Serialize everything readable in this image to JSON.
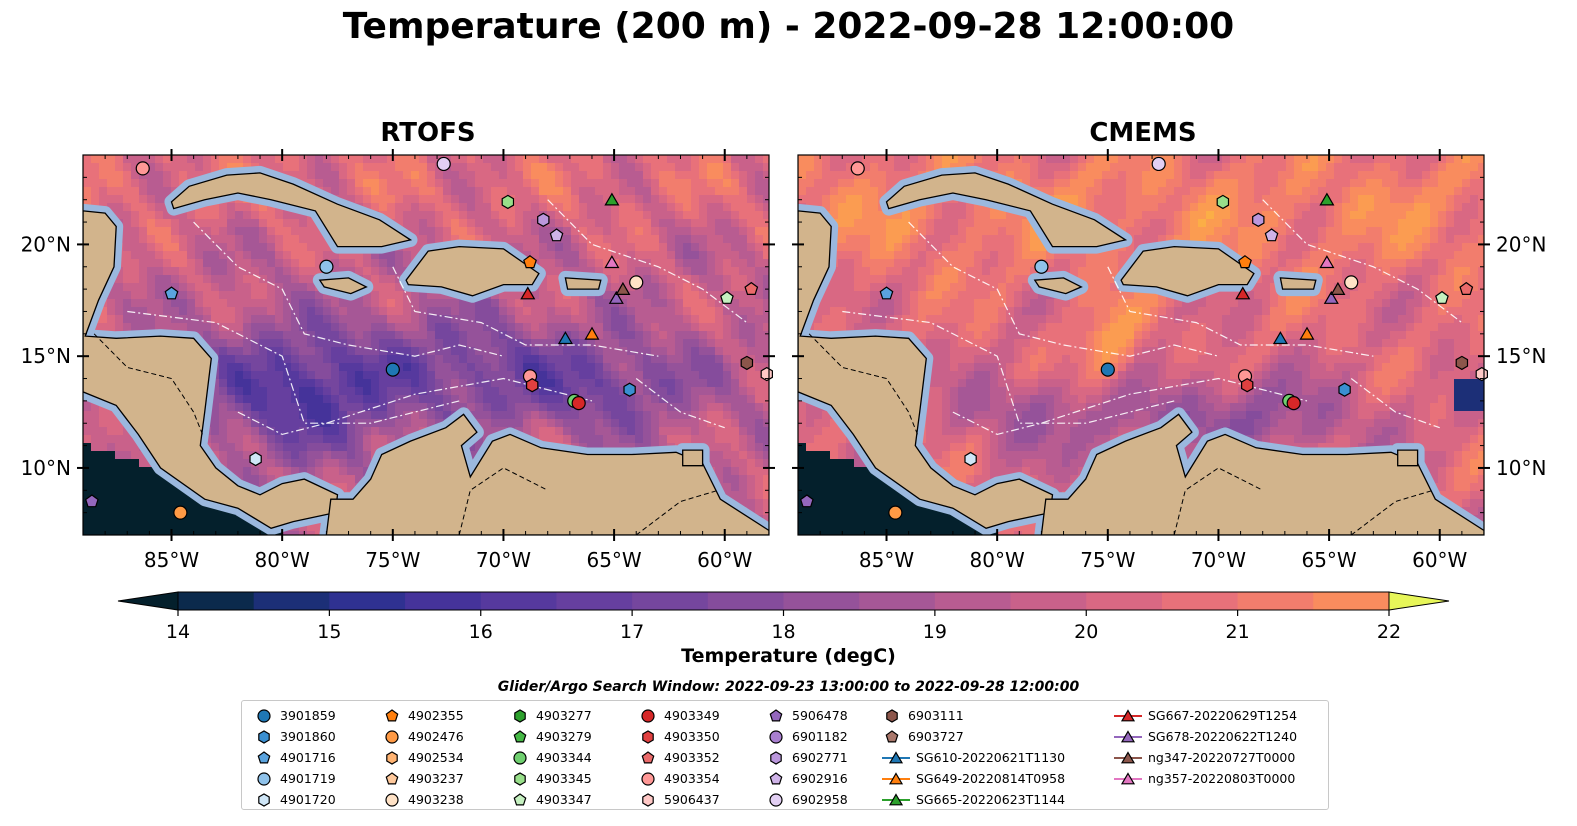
{
  "title": "Temperature (200 m) - 2022-09-28 12:00:00",
  "panels": [
    {
      "id": "rtofs",
      "title": "RTOFS",
      "field": "rtofs"
    },
    {
      "id": "cmems",
      "title": "CMEMS",
      "field": "cmems"
    }
  ],
  "map": {
    "lon_range": [
      -89,
      -58
    ],
    "lat_range": [
      7,
      24
    ],
    "x_ticks": [
      -85,
      -80,
      -75,
      -70,
      -65,
      -60
    ],
    "x_tick_labels": [
      "85°W",
      "80°W",
      "75°W",
      "70°W",
      "65°W",
      "60°W"
    ],
    "y_ticks": [
      10,
      15,
      20
    ],
    "y_tick_labels": [
      "10°N",
      "15°N",
      "20°N"
    ],
    "land_color": "#d2b48c",
    "shallow_color": "#9bb8de",
    "bathymetry_contours": [
      "-100",
      "-1000"
    ]
  },
  "colorbar": {
    "label": "Temperature (degC)",
    "min": 14,
    "max": 22,
    "step": 0.5,
    "ticks": [
      14,
      15,
      16,
      17,
      18,
      19,
      20,
      21,
      22
    ],
    "tick_labels": [
      "14",
      "15",
      "16",
      "17",
      "18",
      "19",
      "20",
      "21",
      "22"
    ],
    "extend": "both",
    "colormap": "thermal",
    "colors": [
      "#04202c",
      "#0b2a4c",
      "#1c2f77",
      "#2f3191",
      "#45339a",
      "#56399e",
      "#663f9f",
      "#75469e",
      "#854c9c",
      "#95529a",
      "#a65796",
      "#b85c91",
      "#c9618a",
      "#d96883",
      "#e8717a",
      "#f27d6d",
      "#f98c5e",
      "#fb9c51",
      "#fbae46",
      "#f9c040",
      "#f5d341",
      "#f0e64a",
      "#e7f659"
    ]
  },
  "legend": {
    "title": "Glider/Argo Search Window: 2022-09-23 13:00:00 to 2022-09-28 12:00:00",
    "columns": [
      [
        {
          "label": "3901859",
          "marker": "circle",
          "color": "#1f77b4"
        },
        {
          "label": "3901860",
          "marker": "hexagon",
          "color": "#3a8fd1"
        },
        {
          "label": "4901716",
          "marker": "pentagon",
          "color": "#5aa3de"
        },
        {
          "label": "4901719",
          "marker": "circle",
          "color": "#8fc2ea"
        },
        {
          "label": "4901720",
          "marker": "hexagon",
          "color": "#cfe6f7"
        }
      ],
      [
        {
          "label": "4902355",
          "marker": "pentagon",
          "color": "#ff7f0e"
        },
        {
          "label": "4902476",
          "marker": "circle",
          "color": "#ff9a45"
        },
        {
          "label": "4902534",
          "marker": "hexagon",
          "color": "#ffb372"
        },
        {
          "label": "4903237",
          "marker": "pentagon",
          "color": "#ffc99c"
        },
        {
          "label": "4903238",
          "marker": "circle",
          "color": "#ffe2c6"
        }
      ],
      [
        {
          "label": "4903277",
          "marker": "hexagon",
          "color": "#2ca02c"
        },
        {
          "label": "4903279",
          "marker": "pentagon",
          "color": "#45b845"
        },
        {
          "label": "4903344",
          "marker": "circle",
          "color": "#6fcf6f"
        },
        {
          "label": "4903345",
          "marker": "hexagon",
          "color": "#98df8a"
        },
        {
          "label": "4903347",
          "marker": "pentagon",
          "color": "#c5f0c0"
        }
      ],
      [
        {
          "label": "4903349",
          "marker": "circle",
          "color": "#d62728"
        },
        {
          "label": "4903350",
          "marker": "hexagon",
          "color": "#e04040"
        },
        {
          "label": "4903352",
          "marker": "pentagon",
          "color": "#ea6a6a"
        },
        {
          "label": "4903354",
          "marker": "circle",
          "color": "#ff9896"
        },
        {
          "label": "5906437",
          "marker": "hexagon",
          "color": "#ffc8c6"
        }
      ],
      [
        {
          "label": "5906478",
          "marker": "pentagon",
          "color": "#9467bd"
        },
        {
          "label": "6901182",
          "marker": "circle",
          "color": "#a97fd0"
        },
        {
          "label": "6902771",
          "marker": "hexagon",
          "color": "#bb97dd"
        },
        {
          "label": "6902916",
          "marker": "pentagon",
          "color": "#cfb3e8"
        },
        {
          "label": "6902958",
          "marker": "circle",
          "color": "#e2cff3"
        }
      ],
      [
        {
          "label": "6903111",
          "marker": "hexagon",
          "color": "#8c564b"
        },
        {
          "label": "6903727",
          "marker": "pentagon",
          "color": "#a9776b"
        },
        {
          "label": "SG610-20220621T1130",
          "marker": "triangle",
          "color": "#1f77b4",
          "line": true
        },
        {
          "label": "SG649-20220814T0958",
          "marker": "triangle",
          "color": "#ff7f0e",
          "line": true
        },
        {
          "label": "SG665-20220623T1144",
          "marker": "triangle",
          "color": "#2ca02c",
          "line": true
        }
      ],
      [
        {
          "label": "SG667-20220629T1254",
          "marker": "triangle",
          "color": "#d62728",
          "line": true
        },
        {
          "label": "SG678-20220622T1240",
          "marker": "triangle",
          "color": "#9467bd",
          "line": true
        },
        {
          "label": "ng347-20220727T0000",
          "marker": "triangle",
          "color": "#8c564b",
          "line": true
        },
        {
          "label": "ng357-20220803T0000",
          "marker": "triangle",
          "color": "#e377c2",
          "line": true
        }
      ]
    ]
  },
  "platforms": [
    {
      "label": "3901859",
      "lon": -75.0,
      "lat": 14.4
    },
    {
      "label": "4901720",
      "lon": -81.2,
      "lat": 10.4
    },
    {
      "label": "4901719",
      "lon": -78.0,
      "lat": 19.0
    },
    {
      "label": "4901716",
      "lon": -85.0,
      "lat": 17.8
    },
    {
      "label": "4903354",
      "lon": -86.3,
      "lat": 23.4
    },
    {
      "label": "4902476",
      "lon": -84.6,
      "lat": 8.0
    },
    {
      "label": "5906478",
      "lon": -88.6,
      "lat": 8.5
    },
    {
      "label": "6902958",
      "lon": -72.7,
      "lat": 23.6
    },
    {
      "label": "4903345",
      "lon": -69.8,
      "lat": 21.9
    },
    {
      "label": "6902771",
      "lon": -68.2,
      "lat": 21.1
    },
    {
      "label": "6902916",
      "lon": -67.6,
      "lat": 20.4
    },
    {
      "label": "4902355",
      "lon": -68.8,
      "lat": 19.2
    },
    {
      "label": "4903352",
      "lon": -58.8,
      "lat": 18.0
    },
    {
      "label": "4903347",
      "lon": -59.9,
      "lat": 17.6
    },
    {
      "label": "4903238",
      "lon": -64.0,
      "lat": 18.3
    },
    {
      "label": "6903111",
      "lon": -59.0,
      "lat": 14.7
    },
    {
      "label": "5906437",
      "lon": -58.1,
      "lat": 14.2
    },
    {
      "label": "4903354",
      "lon": -68.8,
      "lat": 14.1
    },
    {
      "label": "4903350",
      "lon": -68.7,
      "lat": 13.7
    },
    {
      "label": "4903344",
      "lon": -66.8,
      "lat": 13.0
    },
    {
      "label": "4903349",
      "lon": -66.6,
      "lat": 12.9
    },
    {
      "label": "3901860",
      "lon": -64.3,
      "lat": 13.5
    },
    {
      "label": "SG610-20220621T1130",
      "lon": -67.2,
      "lat": 15.8
    },
    {
      "label": "SG649-20220814T0958",
      "lon": -66.0,
      "lat": 16.0
    },
    {
      "label": "SG665-20220623T1144",
      "lon": -65.1,
      "lat": 22.0
    },
    {
      "label": "SG667-20220629T1254",
      "lon": -68.9,
      "lat": 17.8
    },
    {
      "label": "SG678-20220622T1240",
      "lon": -64.9,
      "lat": 17.6
    },
    {
      "label": "ng347-20220727T0000",
      "lon": -64.6,
      "lat": 18.0
    },
    {
      "label": "ng357-20220803T0000",
      "lon": -65.1,
      "lat": 19.2
    }
  ]
}
